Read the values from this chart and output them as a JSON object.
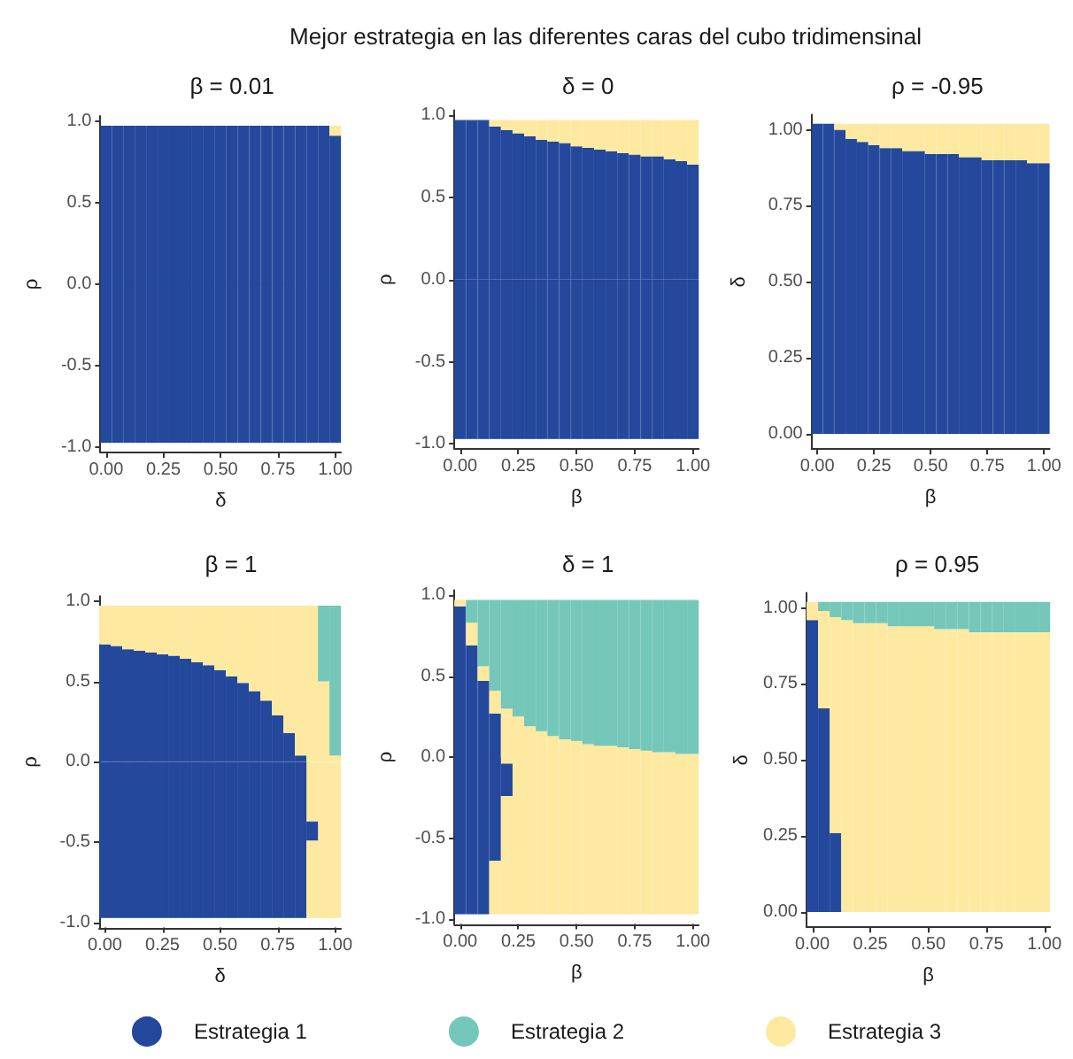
{
  "chart_data": [
    {
      "type": "other",
      "title": "Mejor estrategia en las diferentes caras del cubo tridimensinal"
    },
    {
      "type": "bar",
      "stacked": true,
      "title": "β = 0.01",
      "xlabel": "δ",
      "ylabel": "ρ",
      "categories": [
        "0.00",
        null,
        null,
        null,
        null,
        "0.25",
        null,
        null,
        null,
        null,
        "0.50",
        null,
        null,
        null,
        null,
        "0.75",
        null,
        null,
        null,
        null,
        "1.00"
      ],
      "ylim": [
        -1.03,
        1.03
      ],
      "yticks": [
        {
          "value": -1,
          "label": "-1.0"
        },
        {
          "value": -0.5,
          "label": "-0.5"
        },
        {
          "value": 0,
          "label": "0.0"
        },
        {
          "value": 0.5,
          "label": "0.5"
        },
        {
          "value": 1,
          "label": "1.0"
        }
      ],
      "series": [
        {
          "color": "#23489c",
          "values": [
            0.97,
            0.97,
            0.97,
            0.97,
            0.97,
            0.97,
            0.97,
            0.97,
            0.97,
            0.97,
            0.97,
            0.97,
            0.97,
            0.97,
            0.97,
            0.97,
            0.97,
            0.97,
            0.97,
            0.97,
            0.91
          ]
        },
        {
          "color": "#fde9a0",
          "values": [
            null,
            null,
            null,
            null,
            null,
            null,
            null,
            null,
            null,
            null,
            null,
            null,
            null,
            null,
            null,
            null,
            null,
            null,
            null,
            null,
            0.06
          ]
        },
        {
          "color": "#23489c",
          "values": [
            -0.97,
            -0.97,
            -0.97,
            -0.97,
            -0.97,
            -0.97,
            -0.97,
            -0.97,
            -0.97,
            -0.97,
            -0.97,
            -0.97,
            -0.97,
            -0.97,
            -0.97,
            -0.97,
            -0.97,
            -0.97,
            -0.97,
            -0.97,
            -0.97
          ]
        }
      ]
    },
    {
      "type": "bar",
      "stacked": true,
      "title": "δ = 0",
      "xlabel": "β",
      "ylabel": "ρ",
      "categories": [
        "0.00",
        null,
        null,
        null,
        null,
        "0.25",
        null,
        null,
        null,
        null,
        "0.50",
        null,
        null,
        null,
        null,
        "0.75",
        null,
        null,
        null,
        null,
        "1.00"
      ],
      "ylim": [
        -1.03,
        1.03
      ],
      "yticks": [
        {
          "value": -1,
          "label": "-1.0"
        },
        {
          "value": -0.5,
          "label": "-0.5"
        },
        {
          "value": 0,
          "label": "0.0"
        },
        {
          "value": 0.5,
          "label": "0.5"
        },
        {
          "value": 1,
          "label": "1.0"
        }
      ],
      "series": [
        {
          "color": "#23489c",
          "values": [
            0.97,
            0.97,
            0.97,
            0.93,
            0.91,
            0.89,
            0.87,
            0.85,
            0.84,
            0.83,
            0.81,
            0.8,
            0.79,
            0.78,
            0.77,
            0.76,
            0.75,
            0.75,
            0.73,
            0.72,
            0.7
          ]
        },
        {
          "color": "#fde9a0",
          "values": [
            null,
            null,
            null,
            0.04,
            0.06,
            0.08,
            0.1,
            0.12,
            0.13,
            0.14,
            0.16,
            0.17,
            0.18,
            0.19,
            0.2,
            0.21,
            0.22,
            0.22,
            0.24,
            0.25,
            0.27
          ]
        },
        {
          "color": "#23489c",
          "values": [
            -0.97,
            -0.97,
            -0.97,
            -0.97,
            -0.97,
            -0.97,
            -0.97,
            -0.97,
            -0.97,
            -0.97,
            -0.97,
            -0.97,
            -0.97,
            -0.97,
            -0.97,
            -0.97,
            -0.97,
            -0.97,
            -0.97,
            -0.97,
            -0.97
          ]
        }
      ]
    },
    {
      "type": "bar",
      "stacked": true,
      "title": "ρ = -0.95",
      "xlabel": "β",
      "ylabel": "δ",
      "categories": [
        "0.00",
        null,
        null,
        null,
        null,
        "0.25",
        null,
        null,
        null,
        null,
        "0.50",
        null,
        null,
        null,
        null,
        "0.75",
        null,
        null,
        null,
        null,
        "1.00"
      ],
      "ylim": [
        -0.05,
        1.05
      ],
      "yticks": [
        {
          "value": 0,
          "label": "0.00"
        },
        {
          "value": 0.25,
          "label": "0.25"
        },
        {
          "value": 0.5,
          "label": "0.50"
        },
        {
          "value": 0.75,
          "label": "0.75"
        },
        {
          "value": 1,
          "label": "1.00"
        }
      ],
      "series": [
        {
          "color": "#23489c",
          "values": [
            1.02,
            1.02,
            1,
            0.97,
            0.96,
            0.95,
            0.94,
            0.94,
            0.93,
            0.93,
            0.92,
            0.92,
            0.92,
            0.91,
            0.91,
            0.9,
            0.9,
            0.9,
            0.9,
            0.89,
            0.89
          ]
        },
        {
          "color": "#fde9a0",
          "values": [
            null,
            null,
            0.02,
            0.05,
            0.06,
            0.07,
            0.08,
            0.08,
            0.09,
            0.09,
            0.1,
            0.1,
            0.1,
            0.11,
            0.11,
            0.12,
            0.12,
            0.12,
            0.12,
            0.13,
            0.13
          ]
        }
      ]
    },
    {
      "type": "bar",
      "stacked": true,
      "title": "β = 1",
      "xlabel": "δ",
      "ylabel": "ρ",
      "categories": [
        "0.00",
        null,
        null,
        null,
        null,
        "0.25",
        null,
        null,
        null,
        null,
        "0.50",
        null,
        null,
        null,
        null,
        "0.75",
        null,
        null,
        null,
        null,
        "1.00"
      ],
      "ylim": [
        -1.03,
        1.03
      ],
      "yticks": [
        {
          "value": -1,
          "label": "-1.0"
        },
        {
          "value": -0.5,
          "label": "-0.5"
        },
        {
          "value": 0,
          "label": "0.0"
        },
        {
          "value": 0.5,
          "label": "0.5"
        },
        {
          "value": 1,
          "label": "1.0"
        }
      ],
      "series": [
        {
          "color": "#23489c",
          "values": [
            0.73,
            0.72,
            0.7,
            0.69,
            0.68,
            0.67,
            0.66,
            0.64,
            0.62,
            0.6,
            0.57,
            0.53,
            0.49,
            0.44,
            0.38,
            0.29,
            0.18,
            0.04,
            null,
            null,
            null
          ]
        },
        {
          "color": "#fde9a0",
          "values": [
            0.24,
            0.25,
            0.27,
            0.28,
            0.29,
            0.3,
            0.31,
            0.33,
            0.35,
            0.37,
            0.4,
            0.44,
            0.48,
            0.53,
            0.59,
            0.68,
            0.79,
            0.93,
            0.97,
            0.5,
            0.04
          ]
        },
        {
          "color": "#74c7b9",
          "values": [
            null,
            null,
            null,
            null,
            null,
            null,
            null,
            null,
            null,
            null,
            null,
            null,
            null,
            null,
            null,
            null,
            null,
            null,
            null,
            0.47,
            0.93
          ]
        },
        {
          "color": "#fde9a0",
          "values": [
            null,
            null,
            null,
            null,
            null,
            null,
            null,
            null,
            null,
            null,
            null,
            null,
            null,
            null,
            null,
            null,
            null,
            null,
            -0.37,
            -0.97,
            -0.97
          ]
        },
        {
          "color": "#23489c",
          "values": [
            -0.97,
            -0.97,
            -0.97,
            -0.97,
            -0.97,
            -0.97,
            -0.97,
            -0.97,
            -0.97,
            -0.97,
            -0.97,
            -0.97,
            -0.97,
            -0.97,
            -0.97,
            -0.97,
            -0.97,
            -0.97,
            -0.12,
            null,
            null
          ]
        },
        {
          "color": "#fde9a0",
          "values": [
            null,
            null,
            null,
            null,
            null,
            null,
            null,
            null,
            null,
            null,
            null,
            null,
            null,
            null,
            null,
            null,
            null,
            null,
            -0.48,
            null,
            null
          ]
        }
      ]
    },
    {
      "type": "bar",
      "stacked": true,
      "title": "δ = 1",
      "xlabel": "β",
      "ylabel": "ρ",
      "categories": [
        "0.00",
        null,
        null,
        null,
        null,
        "0.25",
        null,
        null,
        null,
        null,
        "0.50",
        null,
        null,
        null,
        null,
        "0.75",
        null,
        null,
        null,
        null,
        "1.00"
      ],
      "ylim": [
        -1.03,
        1.03
      ],
      "yticks": [
        {
          "value": -1,
          "label": "-1.0"
        },
        {
          "value": -0.5,
          "label": "-0.5"
        },
        {
          "value": 0,
          "label": "0.0"
        },
        {
          "value": 0.5,
          "label": "0.5"
        },
        {
          "value": 1,
          "label": "1.0"
        }
      ],
      "series": [
        {
          "color": "#23489c",
          "values": [
            0.93,
            0.69,
            0.47,
            0.27,
            null,
            null,
            null,
            null,
            null,
            null,
            null,
            null,
            null,
            null,
            null,
            null,
            null,
            null,
            null,
            null,
            null
          ]
        },
        {
          "color": "#fde9a0",
          "values": [
            0.04,
            0.14,
            0.09,
            0.14,
            0.3,
            0.25,
            0.19,
            0.16,
            0.13,
            0.11,
            0.1,
            0.08,
            0.07,
            0.07,
            0.06,
            0.05,
            0.04,
            0.03,
            0.03,
            0.02,
            0.02
          ]
        },
        {
          "color": "#74c7b9",
          "values": [
            null,
            0.14,
            0.41,
            0.56,
            0.67,
            0.72,
            0.78,
            0.81,
            0.84,
            0.86,
            0.87,
            0.89,
            0.9,
            0.9,
            0.91,
            0.92,
            0.93,
            0.94,
            0.94,
            0.95,
            0.95
          ]
        },
        {
          "color": "#fde9a0",
          "values": [
            null,
            null,
            null,
            null,
            -0.04,
            -0.97,
            -0.97,
            -0.97,
            -0.97,
            -0.97,
            -0.97,
            -0.97,
            -0.97,
            -0.97,
            -0.97,
            -0.97,
            -0.97,
            -0.97,
            -0.97,
            -0.97,
            -0.97
          ]
        },
        {
          "color": "#23489c",
          "values": [
            -0.97,
            -0.97,
            -0.97,
            -0.64,
            -0.2,
            null,
            null,
            null,
            null,
            null,
            null,
            null,
            null,
            null,
            null,
            null,
            null,
            null,
            null,
            null,
            null
          ]
        },
        {
          "color": "#fde9a0",
          "values": [
            null,
            null,
            null,
            -0.33,
            -0.73,
            null,
            null,
            null,
            null,
            null,
            null,
            null,
            null,
            null,
            null,
            null,
            null,
            null,
            null,
            null,
            null
          ]
        }
      ]
    },
    {
      "type": "bar",
      "stacked": true,
      "title": "ρ = 0.95",
      "xlabel": "β",
      "ylabel": "δ",
      "legend": "bottom",
      "categories": [
        "0.00",
        null,
        null,
        null,
        null,
        "0.25",
        null,
        null,
        null,
        null,
        "0.50",
        null,
        null,
        null,
        null,
        "0.75",
        null,
        null,
        null,
        null,
        "1.00"
      ],
      "ylim": [
        -0.05,
        1.05
      ],
      "yticks": [
        {
          "value": 0,
          "label": "0.00"
        },
        {
          "value": 0.25,
          "label": "0.25"
        },
        {
          "value": 0.5,
          "label": "0.50"
        },
        {
          "value": 0.75,
          "label": "0.75"
        },
        {
          "value": 1,
          "label": "1.00"
        }
      ],
      "series": [
        {
          "name": "Estrategia 1",
          "color": "#23489c",
          "values": [
            0.96,
            0.67,
            0.26,
            null,
            null,
            null,
            null,
            null,
            null,
            null,
            null,
            null,
            null,
            null,
            null,
            null,
            null,
            null,
            null,
            null,
            null
          ]
        },
        {
          "name": "Estrategia 3",
          "color": "#fde9a0",
          "values": [
            0.06,
            0.32,
            0.71,
            0.96,
            0.95,
            0.95,
            0.95,
            0.94,
            0.94,
            0.94,
            0.94,
            0.93,
            0.93,
            0.93,
            0.92,
            0.92,
            0.92,
            0.92,
            0.92,
            0.92,
            0.92
          ]
        },
        {
          "name": "Estrategia 2",
          "color": "#74c7b9",
          "values": [
            null,
            0.03,
            0.05,
            0.06,
            0.07,
            0.07,
            0.07,
            0.08,
            0.08,
            0.08,
            0.08,
            0.09,
            0.09,
            0.09,
            0.1,
            0.1,
            0.1,
            0.1,
            0.1,
            0.1,
            0.1
          ]
        }
      ]
    }
  ]
}
